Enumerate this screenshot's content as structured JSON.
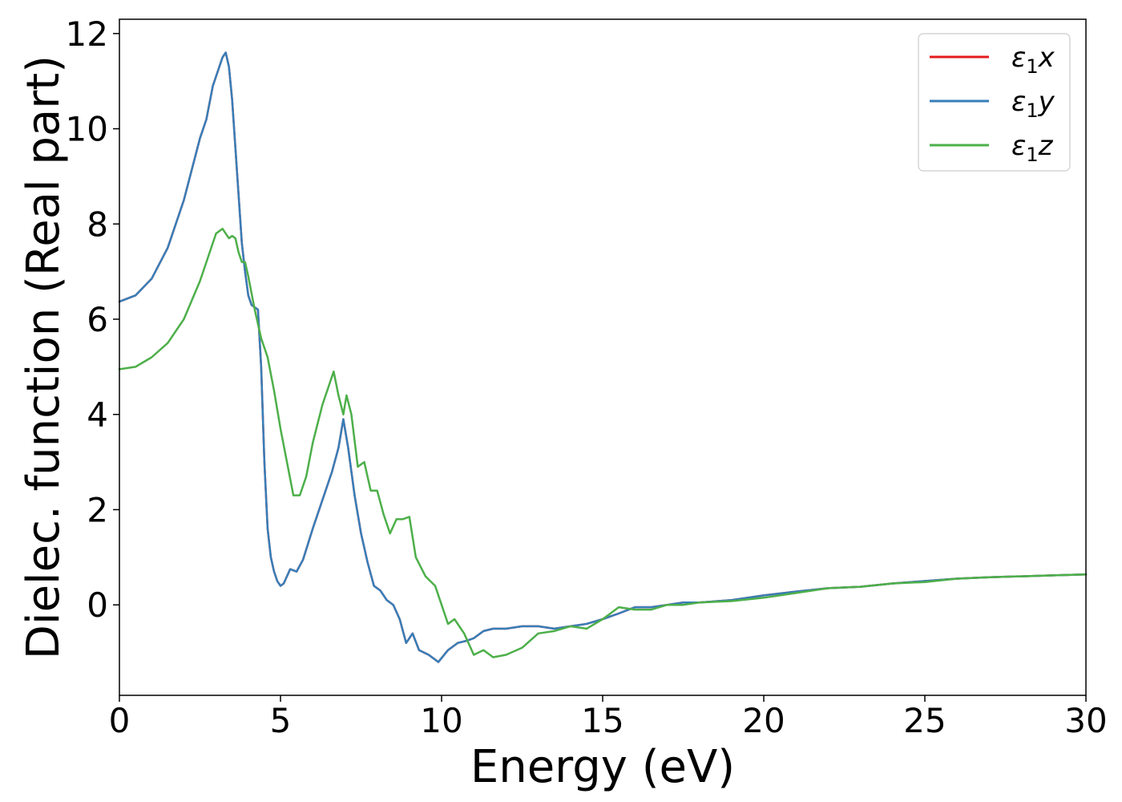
{
  "chart_data": {
    "type": "line",
    "xlabel": "Energy (eV)",
    "ylabel": "Dielec. function (Real part)",
    "xlim": [
      0,
      30
    ],
    "ylim": [
      -1.9,
      12.3
    ],
    "xticks": [
      0,
      5,
      10,
      15,
      20,
      25,
      30
    ],
    "yticks": [
      0,
      2,
      4,
      6,
      8,
      10,
      12
    ],
    "grid": false,
    "legend_position": "top-right",
    "series": [
      {
        "name": "ε1x",
        "legend_main": "ε",
        "legend_sub": "1",
        "legend_var": "x",
        "color": "#e41a1c",
        "x": [
          0,
          0.5,
          1,
          1.5,
          2,
          2.5,
          2.7,
          2.9,
          3.1,
          3.2,
          3.3,
          3.4,
          3.5,
          3.6,
          3.7,
          3.8,
          3.9,
          4.0,
          4.1,
          4.2,
          4.3,
          4.4,
          4.5,
          4.6,
          4.7,
          4.8,
          4.9,
          5.0,
          5.1,
          5.2,
          5.3,
          5.5,
          5.7,
          6.0,
          6.3,
          6.6,
          6.8,
          6.95,
          7.1,
          7.3,
          7.5,
          7.7,
          7.9,
          8.1,
          8.3,
          8.5,
          8.7,
          8.9,
          9.1,
          9.3,
          9.6,
          9.9,
          10.2,
          10.5,
          10.8,
          11.0,
          11.3,
          11.6,
          12.0,
          12.5,
          13.0,
          13.5,
          14.0,
          14.5,
          15.0,
          15.5,
          16.0,
          16.5,
          17.0,
          17.5,
          18.0,
          19.0,
          20.0,
          21.0,
          22.0,
          23.0,
          24.0,
          25.0,
          26.0,
          27.0,
          28.0,
          29.0,
          30.0
        ],
        "y": [
          6.37,
          6.5,
          6.85,
          7.5,
          8.5,
          9.8,
          10.2,
          10.9,
          11.3,
          11.5,
          11.6,
          11.3,
          10.6,
          9.6,
          8.6,
          7.6,
          7.0,
          6.5,
          6.3,
          6.25,
          6.2,
          5.0,
          3.0,
          1.6,
          1.0,
          0.7,
          0.5,
          0.4,
          0.45,
          0.6,
          0.75,
          0.7,
          0.95,
          1.6,
          2.2,
          2.8,
          3.3,
          3.9,
          3.3,
          2.3,
          1.5,
          0.9,
          0.4,
          0.3,
          0.1,
          0.0,
          -0.3,
          -0.8,
          -0.6,
          -0.95,
          -1.05,
          -1.2,
          -0.95,
          -0.8,
          -0.75,
          -0.7,
          -0.55,
          -0.5,
          -0.5,
          -0.45,
          -0.45,
          -0.5,
          -0.45,
          -0.4,
          -0.3,
          -0.18,
          -0.05,
          -0.05,
          0.0,
          0.05,
          0.05,
          0.1,
          0.2,
          0.28,
          0.35,
          0.38,
          0.45,
          0.5,
          0.55,
          0.58,
          0.6,
          0.62,
          0.64
        ]
      },
      {
        "name": "ε1y",
        "legend_main": "ε",
        "legend_sub": "1",
        "legend_var": "y",
        "color": "#377eb8",
        "x": [
          0,
          0.5,
          1,
          1.5,
          2,
          2.5,
          2.7,
          2.9,
          3.1,
          3.2,
          3.3,
          3.4,
          3.5,
          3.6,
          3.7,
          3.8,
          3.9,
          4.0,
          4.1,
          4.2,
          4.3,
          4.4,
          4.5,
          4.6,
          4.7,
          4.8,
          4.9,
          5.0,
          5.1,
          5.2,
          5.3,
          5.5,
          5.7,
          6.0,
          6.3,
          6.6,
          6.8,
          6.95,
          7.1,
          7.3,
          7.5,
          7.7,
          7.9,
          8.1,
          8.3,
          8.5,
          8.7,
          8.9,
          9.1,
          9.3,
          9.6,
          9.9,
          10.2,
          10.5,
          10.8,
          11.0,
          11.3,
          11.6,
          12.0,
          12.5,
          13.0,
          13.5,
          14.0,
          14.5,
          15.0,
          15.5,
          16.0,
          16.5,
          17.0,
          17.5,
          18.0,
          19.0,
          20.0,
          21.0,
          22.0,
          23.0,
          24.0,
          25.0,
          26.0,
          27.0,
          28.0,
          29.0,
          30.0
        ],
        "y": [
          6.37,
          6.5,
          6.85,
          7.5,
          8.5,
          9.8,
          10.2,
          10.9,
          11.3,
          11.5,
          11.6,
          11.3,
          10.6,
          9.6,
          8.6,
          7.6,
          7.0,
          6.5,
          6.3,
          6.25,
          6.2,
          5.0,
          3.0,
          1.6,
          1.0,
          0.7,
          0.5,
          0.4,
          0.45,
          0.6,
          0.75,
          0.7,
          0.95,
          1.6,
          2.2,
          2.8,
          3.3,
          3.9,
          3.3,
          2.3,
          1.5,
          0.9,
          0.4,
          0.3,
          0.1,
          0.0,
          -0.3,
          -0.8,
          -0.6,
          -0.95,
          -1.05,
          -1.2,
          -0.95,
          -0.8,
          -0.75,
          -0.7,
          -0.55,
          -0.5,
          -0.5,
          -0.45,
          -0.45,
          -0.5,
          -0.45,
          -0.4,
          -0.3,
          -0.18,
          -0.05,
          -0.05,
          0.0,
          0.05,
          0.05,
          0.1,
          0.2,
          0.28,
          0.35,
          0.38,
          0.45,
          0.5,
          0.55,
          0.58,
          0.6,
          0.62,
          0.64
        ]
      },
      {
        "name": "ε1z",
        "legend_main": "ε",
        "legend_sub": "1",
        "legend_var": "z",
        "color": "#4daf4a",
        "x": [
          0,
          0.5,
          1,
          1.5,
          2,
          2.5,
          2.8,
          3.0,
          3.2,
          3.3,
          3.4,
          3.5,
          3.6,
          3.7,
          3.8,
          3.9,
          4.0,
          4.2,
          4.4,
          4.6,
          4.8,
          5.0,
          5.2,
          5.4,
          5.6,
          5.8,
          6.0,
          6.3,
          6.5,
          6.65,
          6.8,
          6.95,
          7.05,
          7.2,
          7.4,
          7.6,
          7.8,
          8.0,
          8.2,
          8.4,
          8.6,
          8.8,
          9.0,
          9.2,
          9.5,
          9.8,
          10.0,
          10.2,
          10.4,
          10.7,
          11.0,
          11.3,
          11.6,
          12.0,
          12.5,
          13.0,
          13.5,
          14.0,
          14.5,
          15.0,
          15.5,
          16.0,
          16.5,
          17.0,
          17.5,
          18.0,
          19.0,
          20.0,
          21.0,
          22.0,
          23.0,
          24.0,
          25.0,
          26.0,
          27.0,
          28.0,
          29.0,
          30.0
        ],
        "y": [
          4.95,
          5.0,
          5.2,
          5.5,
          6.0,
          6.8,
          7.4,
          7.8,
          7.9,
          7.8,
          7.7,
          7.75,
          7.7,
          7.4,
          7.2,
          7.2,
          6.9,
          6.2,
          5.6,
          5.2,
          4.5,
          3.7,
          3.0,
          2.3,
          2.3,
          2.7,
          3.4,
          4.2,
          4.6,
          4.9,
          4.4,
          4.0,
          4.4,
          4.0,
          2.9,
          3.0,
          2.4,
          2.4,
          1.9,
          1.5,
          1.8,
          1.8,
          1.85,
          1.0,
          0.6,
          0.4,
          0.0,
          -0.4,
          -0.3,
          -0.6,
          -1.05,
          -0.95,
          -1.1,
          -1.05,
          -0.9,
          -0.6,
          -0.55,
          -0.45,
          -0.5,
          -0.3,
          -0.05,
          -0.1,
          -0.1,
          0.0,
          0.0,
          0.05,
          0.08,
          0.15,
          0.25,
          0.35,
          0.38,
          0.45,
          0.48,
          0.55,
          0.58,
          0.6,
          0.62,
          0.64
        ]
      }
    ]
  }
}
